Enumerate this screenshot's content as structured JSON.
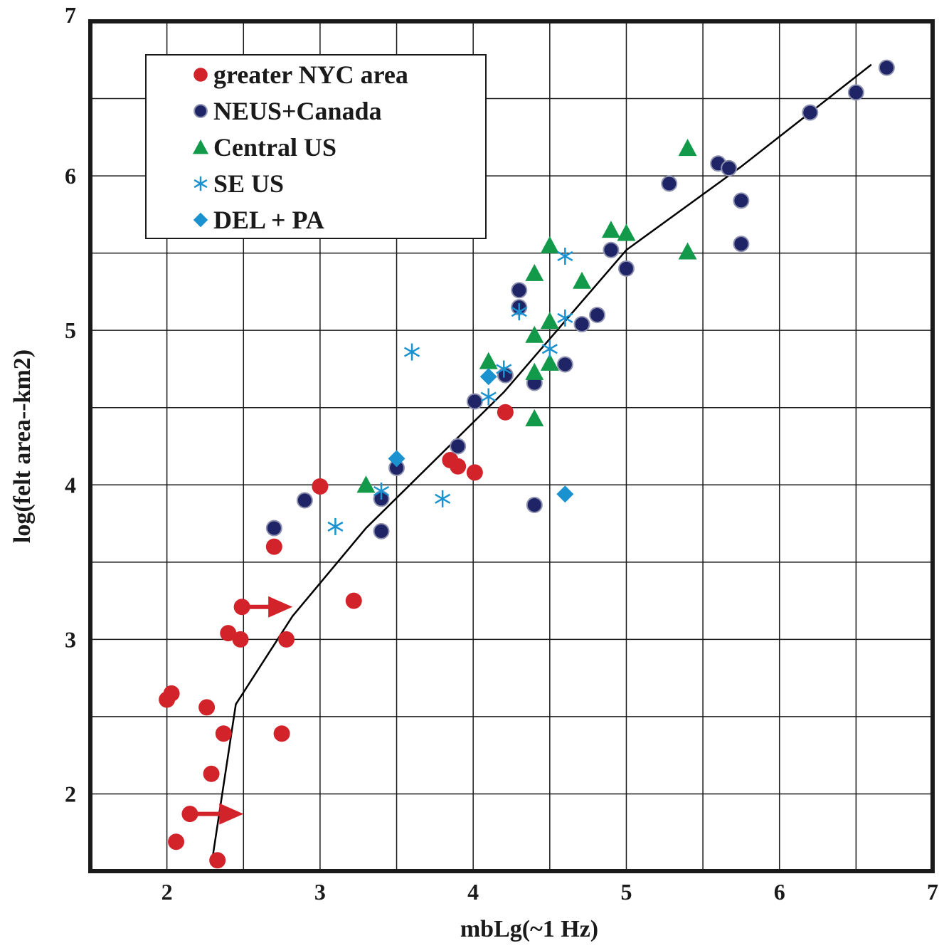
{
  "chart_data": {
    "type": "scatter",
    "title": "",
    "xlabel": "mbLg(~1 Hz)",
    "ylabel": "log(felt area--km2)",
    "xlim": [
      1.5,
      7
    ],
    "ylim": [
      1.5,
      7
    ],
    "x_ticks": [
      "2",
      "3",
      "4",
      "5",
      "6",
      "7"
    ],
    "y_ticks": [
      "2",
      "3",
      "4",
      "5",
      "6",
      "7"
    ],
    "grid": true,
    "grid_step": 0.5,
    "legend_position": "top-left",
    "series": [
      {
        "name": "greater NYC area",
        "marker": "circle",
        "color": "#d2232a",
        "points": [
          [
            2.0,
            2.61
          ],
          [
            2.03,
            2.65
          ],
          [
            2.06,
            1.69
          ],
          [
            2.15,
            1.87
          ],
          [
            2.26,
            2.56
          ],
          [
            2.29,
            2.13
          ],
          [
            2.33,
            1.57
          ],
          [
            2.37,
            2.39
          ],
          [
            2.4,
            3.04
          ],
          [
            2.48,
            3.0
          ],
          [
            2.49,
            3.21
          ],
          [
            2.7,
            3.6
          ],
          [
            2.75,
            2.39
          ],
          [
            2.78,
            3.0
          ],
          [
            3.0,
            3.99
          ],
          [
            3.22,
            3.25
          ],
          [
            3.85,
            4.16
          ],
          [
            3.9,
            4.12
          ],
          [
            4.01,
            4.08
          ],
          [
            4.21,
            4.47
          ]
        ]
      },
      {
        "name": "NEUS+Canada",
        "marker": "circle",
        "color": "#1f2466",
        "points": [
          [
            2.7,
            3.72
          ],
          [
            2.9,
            3.9
          ],
          [
            3.4,
            3.7
          ],
          [
            3.4,
            3.91
          ],
          [
            3.5,
            4.11
          ],
          [
            3.9,
            4.25
          ],
          [
            4.01,
            4.54
          ],
          [
            4.21,
            4.71
          ],
          [
            4.3,
            5.15
          ],
          [
            4.3,
            5.26
          ],
          [
            4.4,
            4.66
          ],
          [
            4.4,
            3.87
          ],
          [
            4.6,
            4.78
          ],
          [
            4.71,
            5.04
          ],
          [
            4.81,
            5.1
          ],
          [
            4.9,
            5.52
          ],
          [
            5.0,
            5.4
          ],
          [
            5.28,
            5.95
          ],
          [
            5.6,
            6.08
          ],
          [
            5.67,
            6.05
          ],
          [
            5.75,
            5.84
          ],
          [
            5.75,
            5.56
          ],
          [
            6.2,
            6.41
          ],
          [
            6.5,
            6.54
          ],
          [
            6.7,
            6.7
          ]
        ]
      },
      {
        "name": "Central US",
        "marker": "triangle",
        "color": "#13994a",
        "points": [
          [
            3.3,
            4.0
          ],
          [
            4.1,
            4.8
          ],
          [
            4.4,
            4.43
          ],
          [
            4.4,
            4.73
          ],
          [
            4.4,
            4.97
          ],
          [
            4.4,
            5.37
          ],
          [
            4.5,
            4.79
          ],
          [
            4.5,
            5.06
          ],
          [
            4.5,
            5.55
          ],
          [
            4.71,
            5.32
          ],
          [
            4.9,
            5.65
          ],
          [
            5.0,
            5.63
          ],
          [
            5.4,
            5.51
          ],
          [
            5.4,
            6.18
          ]
        ]
      },
      {
        "name": "SE US",
        "marker": "asterisk",
        "color": "#1a92d0",
        "points": [
          [
            3.1,
            3.73
          ],
          [
            3.4,
            3.96
          ],
          [
            3.6,
            4.86
          ],
          [
            3.8,
            3.91
          ],
          [
            4.1,
            4.57
          ],
          [
            4.2,
            4.75
          ],
          [
            4.3,
            5.12
          ],
          [
            4.5,
            4.88
          ],
          [
            4.6,
            5.08
          ],
          [
            4.6,
            5.48
          ]
        ]
      },
      {
        "name": "DEL + PA",
        "marker": "diamond",
        "color": "#1a92d0",
        "points": [
          [
            3.5,
            4.17
          ],
          [
            4.1,
            4.7
          ],
          [
            4.6,
            3.94
          ]
        ]
      }
    ],
    "fit_line": {
      "color": "#000000",
      "points": [
        [
          2.3,
          1.6
        ],
        [
          2.45,
          2.58
        ],
        [
          2.82,
          3.15
        ],
        [
          3.3,
          3.72
        ],
        [
          4.2,
          4.6
        ],
        [
          5.0,
          5.52
        ],
        [
          5.75,
          6.06
        ],
        [
          6.6,
          6.72
        ]
      ]
    },
    "arrows": [
      {
        "color": "#d2232a",
        "from": [
          2.49,
          3.21
        ],
        "to": [
          2.82,
          3.21
        ]
      },
      {
        "color": "#d2232a",
        "from": [
          2.15,
          1.87
        ],
        "to": [
          2.5,
          1.87
        ]
      }
    ]
  }
}
